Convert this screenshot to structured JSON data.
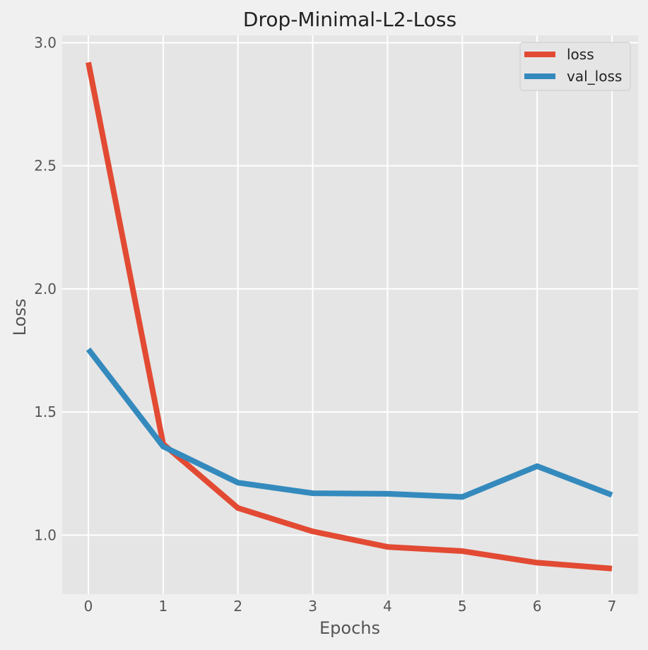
{
  "chart_data": {
    "type": "line",
    "title": "Drop-Minimal-L2-Loss",
    "xlabel": "Epochs",
    "ylabel": "Loss",
    "x": [
      0,
      1,
      2,
      3,
      4,
      5,
      6,
      7
    ],
    "xlim": [
      -0.35,
      7.35
    ],
    "ylim": [
      0.76,
      3.03
    ],
    "xticks": [
      0,
      1,
      2,
      3,
      4,
      5,
      6,
      7
    ],
    "yticks": [
      1.0,
      1.5,
      2.0,
      2.5,
      3.0
    ],
    "ytick_labels": [
      "1.0",
      "1.5",
      "2.0",
      "2.5",
      "3.0"
    ],
    "grid": true,
    "legend_position": "top-right",
    "series": [
      {
        "name": "loss",
        "color": "#e24a33",
        "values": [
          2.92,
          1.37,
          1.11,
          1.015,
          0.952,
          0.935,
          0.888,
          0.864
        ]
      },
      {
        "name": "val_loss",
        "color": "#348abd",
        "values": [
          1.755,
          1.36,
          1.213,
          1.17,
          1.168,
          1.155,
          1.28,
          1.163
        ]
      }
    ],
    "colors": {
      "background": "#f0f0f0",
      "plot_background": "#e5e5e5",
      "grid": "#ffffff",
      "tick_text": "#555555",
      "title_text": "#222222"
    }
  }
}
